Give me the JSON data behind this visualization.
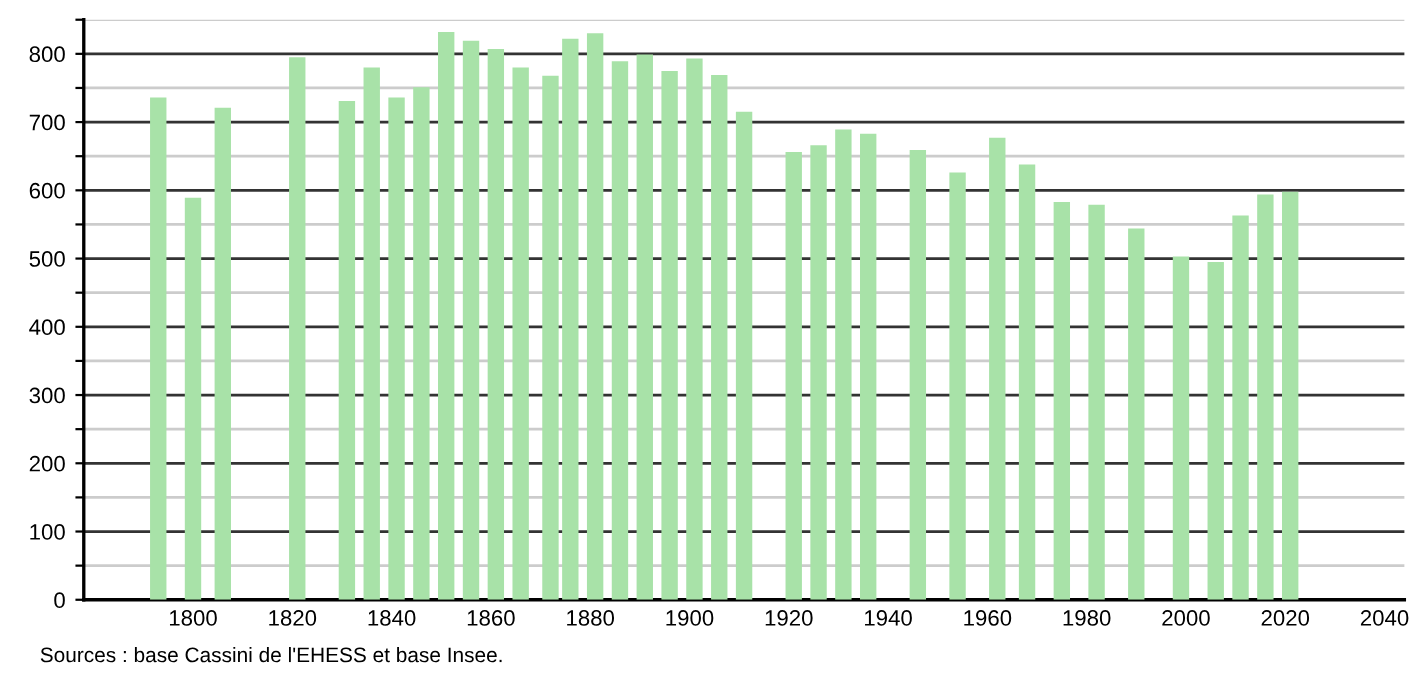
{
  "chart_data": {
    "type": "bar",
    "x": [
      1793,
      1800,
      1806,
      1821,
      1831,
      1836,
      1841,
      1846,
      1851,
      1856,
      1861,
      1866,
      1872,
      1876,
      1881,
      1886,
      1891,
      1896,
      1901,
      1906,
      1911,
      1921,
      1926,
      1931,
      1936,
      1946,
      1954,
      1962,
      1968,
      1975,
      1982,
      1990,
      1999,
      2006,
      2011,
      2016,
      2021
    ],
    "values": [
      736,
      589,
      721,
      795,
      731,
      780,
      736,
      751,
      832,
      819,
      807,
      780,
      768,
      822,
      830,
      789,
      799,
      775,
      793,
      769,
      715,
      656,
      666,
      689,
      683,
      659,
      626,
      677,
      638,
      583,
      579,
      544,
      503,
      495,
      563,
      594,
      598
    ],
    "color": "#a8e2a8",
    "xlim": [
      1778,
      2044
    ],
    "xticks": [
      1800,
      1820,
      1840,
      1860,
      1880,
      1900,
      1920,
      1940,
      1960,
      1980,
      2000,
      2020,
      2040
    ],
    "ylim": [
      0,
      850
    ],
    "yticks": [
      0,
      {
        "value": 50,
        "label": null
      },
      100,
      {
        "value": 150,
        "label": null
      },
      200,
      {
        "value": 250,
        "label": null
      },
      300,
      {
        "value": 350,
        "label": null
      },
      400,
      {
        "value": 450,
        "label": null
      },
      500,
      {
        "value": 550,
        "label": null
      },
      600,
      {
        "value": 650,
        "label": null
      },
      700,
      {
        "value": 750,
        "label": null
      },
      800,
      {
        "value": 850,
        "label": null
      }
    ],
    "grid": "y",
    "annotations": [
      "Sources : base Cassini de l'EHESS et base Insee."
    ]
  }
}
